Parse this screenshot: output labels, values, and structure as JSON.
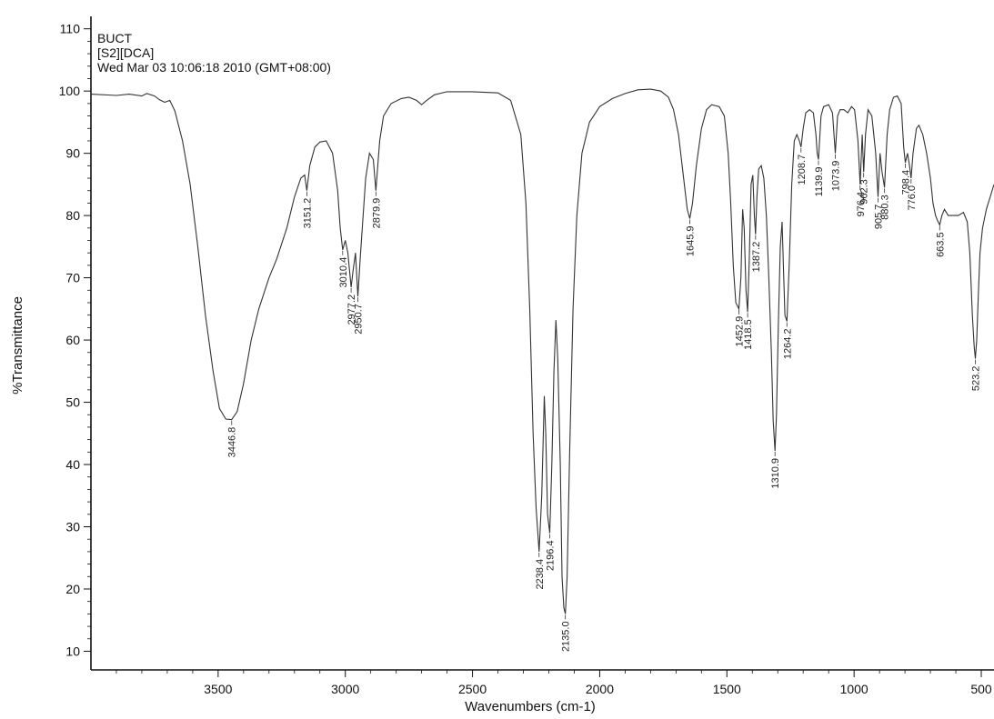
{
  "chart_data": {
    "type": "line",
    "header_lines": [
      "BUCT",
      "[S2][DCA]",
      "Wed Mar 03 10:06:18 2010 (GMT+08:00)"
    ],
    "xlabel": "Wavenumbers (cm-1)",
    "ylabel": "%Transmittance",
    "xlim": [
      4000,
      450
    ],
    "ylim": [
      7,
      112
    ],
    "x_reversed": true,
    "xticks": [
      3500,
      3000,
      2500,
      2000,
      1500,
      1000,
      500
    ],
    "yticks": [
      10,
      20,
      30,
      40,
      50,
      60,
      70,
      80,
      90,
      100,
      110
    ],
    "grid": false,
    "series": [
      {
        "points": [
          [
            4000,
            99.5
          ],
          [
            3900,
            99.3
          ],
          [
            3850,
            99.5
          ],
          [
            3800,
            99.2
          ],
          [
            3780,
            99.6
          ],
          [
            3750,
            99.2
          ],
          [
            3730,
            98.6
          ],
          [
            3710,
            98.2
          ],
          [
            3690,
            98.5
          ],
          [
            3670,
            96.8
          ],
          [
            3640,
            92
          ],
          [
            3610,
            85
          ],
          [
            3580,
            75
          ],
          [
            3550,
            64
          ],
          [
            3520,
            55
          ],
          [
            3495,
            49
          ],
          [
            3470,
            47.3
          ],
          [
            3446.8,
            47.2
          ],
          [
            3425,
            48.5
          ],
          [
            3400,
            53
          ],
          [
            3370,
            60
          ],
          [
            3340,
            65
          ],
          [
            3300,
            70
          ],
          [
            3270,
            73
          ],
          [
            3230,
            78
          ],
          [
            3200,
            83
          ],
          [
            3175,
            86
          ],
          [
            3160,
            86.5
          ],
          [
            3151.2,
            84
          ],
          [
            3140,
            88
          ],
          [
            3120,
            91
          ],
          [
            3100,
            91.8
          ],
          [
            3075,
            92
          ],
          [
            3050,
            90
          ],
          [
            3030,
            84
          ],
          [
            3020,
            78
          ],
          [
            3010.4,
            74.5
          ],
          [
            3000,
            76
          ],
          [
            2990,
            74
          ],
          [
            2977.2,
            68.5
          ],
          [
            2970,
            71
          ],
          [
            2960,
            74
          ],
          [
            2950.7,
            67
          ],
          [
            2940,
            74
          ],
          [
            2920,
            86
          ],
          [
            2905,
            90
          ],
          [
            2890,
            89
          ],
          [
            2879.9,
            84
          ],
          [
            2865,
            92
          ],
          [
            2850,
            96
          ],
          [
            2820,
            98
          ],
          [
            2780,
            98.8
          ],
          [
            2750,
            99
          ],
          [
            2720,
            98.5
          ],
          [
            2700,
            97.8
          ],
          [
            2680,
            98.5
          ],
          [
            2650,
            99.4
          ],
          [
            2600,
            99.9
          ],
          [
            2500,
            99.9
          ],
          [
            2400,
            99.7
          ],
          [
            2350,
            98.5
          ],
          [
            2310,
            93
          ],
          [
            2290,
            82
          ],
          [
            2275,
            65
          ],
          [
            2262,
            45
          ],
          [
            2250,
            33
          ],
          [
            2238.4,
            26
          ],
          [
            2228,
            35
          ],
          [
            2218,
            51
          ],
          [
            2212,
            45
          ],
          [
            2205,
            32
          ],
          [
            2196.4,
            29
          ],
          [
            2188,
            40
          ],
          [
            2180,
            55
          ],
          [
            2172,
            63.2
          ],
          [
            2165,
            57
          ],
          [
            2155,
            40
          ],
          [
            2148,
            22
          ],
          [
            2141,
            17
          ],
          [
            2135,
            16
          ],
          [
            2128,
            22
          ],
          [
            2118,
            42
          ],
          [
            2105,
            65
          ],
          [
            2090,
            80
          ],
          [
            2070,
            90
          ],
          [
            2040,
            95
          ],
          [
            2000,
            97.5
          ],
          [
            1950,
            98.8
          ],
          [
            1900,
            99.6
          ],
          [
            1850,
            100.2
          ],
          [
            1800,
            100.3
          ],
          [
            1760,
            100
          ],
          [
            1730,
            99
          ],
          [
            1710,
            97
          ],
          [
            1690,
            93
          ],
          [
            1670,
            86
          ],
          [
            1656,
            81
          ],
          [
            1645.9,
            79.5
          ],
          [
            1635,
            82
          ],
          [
            1620,
            88
          ],
          [
            1600,
            94
          ],
          [
            1580,
            97
          ],
          [
            1560,
            97.8
          ],
          [
            1530,
            97.5
          ],
          [
            1510,
            96
          ],
          [
            1495,
            90
          ],
          [
            1485,
            82
          ],
          [
            1475,
            72
          ],
          [
            1465,
            66
          ],
          [
            1452.9,
            65
          ],
          [
            1445,
            70
          ],
          [
            1438,
            81
          ],
          [
            1432,
            78
          ],
          [
            1425,
            68
          ],
          [
            1418.5,
            64.5
          ],
          [
            1412,
            73
          ],
          [
            1405,
            85
          ],
          [
            1398,
            86.5
          ],
          [
            1392,
            80
          ],
          [
            1387.2,
            77
          ],
          [
            1382,
            83
          ],
          [
            1375,
            87.5
          ],
          [
            1365,
            88
          ],
          [
            1355,
            86
          ],
          [
            1345,
            80
          ],
          [
            1335,
            70
          ],
          [
            1325,
            58
          ],
          [
            1318,
            47
          ],
          [
            1310.9,
            42.2
          ],
          [
            1305,
            48
          ],
          [
            1298,
            62
          ],
          [
            1290,
            75
          ],
          [
            1283,
            79
          ],
          [
            1278,
            72
          ],
          [
            1272,
            64
          ],
          [
            1264.2,
            63
          ],
          [
            1255,
            72
          ],
          [
            1245,
            85
          ],
          [
            1235,
            92
          ],
          [
            1225,
            93
          ],
          [
            1215,
            92
          ],
          [
            1208.7,
            91
          ],
          [
            1200,
            94
          ],
          [
            1190,
            96.5
          ],
          [
            1175,
            97
          ],
          [
            1160,
            96.5
          ],
          [
            1150,
            93
          ],
          [
            1145,
            90
          ],
          [
            1139.9,
            89
          ],
          [
            1130,
            96
          ],
          [
            1120,
            97.5
          ],
          [
            1100,
            97.8
          ],
          [
            1085,
            96.5
          ],
          [
            1073.9,
            90
          ],
          [
            1065,
            96
          ],
          [
            1055,
            97
          ],
          [
            1040,
            97
          ],
          [
            1025,
            96.5
          ],
          [
            1010,
            97.5
          ],
          [
            998,
            97
          ],
          [
            985,
            92
          ],
          [
            976.4,
            85
          ],
          [
            968,
            93
          ],
          [
            962.3,
            87
          ],
          [
            955,
            93
          ],
          [
            945,
            97
          ],
          [
            930,
            96
          ],
          [
            915,
            90
          ],
          [
            905.7,
            83
          ],
          [
            898,
            90
          ],
          [
            890,
            87
          ],
          [
            880.3,
            84.5
          ],
          [
            870,
            93
          ],
          [
            860,
            97
          ],
          [
            845,
            99
          ],
          [
            830,
            99.2
          ],
          [
            815,
            98
          ],
          [
            805,
            91
          ],
          [
            798.4,
            88.5
          ],
          [
            790,
            90
          ],
          [
            782,
            88
          ],
          [
            776,
            86
          ],
          [
            768,
            90
          ],
          [
            755,
            94
          ],
          [
            745,
            94.5
          ],
          [
            730,
            93
          ],
          [
            715,
            90
          ],
          [
            700,
            86
          ],
          [
            690,
            82
          ],
          [
            680,
            80
          ],
          [
            670,
            79
          ],
          [
            663.5,
            78.5
          ],
          [
            655,
            80
          ],
          [
            645,
            81
          ],
          [
            630,
            80
          ],
          [
            610,
            80
          ],
          [
            590,
            80
          ],
          [
            570,
            80.5
          ],
          [
            555,
            79
          ],
          [
            545,
            74
          ],
          [
            535,
            64
          ],
          [
            528,
            59
          ],
          [
            523.2,
            57
          ],
          [
            518,
            60
          ],
          [
            512,
            67
          ],
          [
            505,
            74
          ],
          [
            495,
            78
          ],
          [
            480,
            81
          ],
          [
            465,
            83
          ],
          [
            450,
            85
          ]
        ]
      }
    ],
    "peak_labels": [
      {
        "text": "3446.8",
        "x": 3446.8,
        "y": 47.2
      },
      {
        "text": "3151.2",
        "x": 3151.2,
        "y": 84
      },
      {
        "text": "3010.4",
        "x": 3010.4,
        "y": 74.5
      },
      {
        "text": "2977.2",
        "x": 2977.2,
        "y": 68.5
      },
      {
        "text": "2950.7",
        "x": 2950.7,
        "y": 67
      },
      {
        "text": "2879.9",
        "x": 2879.9,
        "y": 84
      },
      {
        "text": "2238.4",
        "x": 2238.4,
        "y": 26
      },
      {
        "text": "2196.4",
        "x": 2196.4,
        "y": 29
      },
      {
        "text": "2135.0",
        "x": 2135,
        "y": 16
      },
      {
        "text": "1645.9",
        "x": 1645.9,
        "y": 79.5
      },
      {
        "text": "1452.9",
        "x": 1452.9,
        "y": 65
      },
      {
        "text": "1418.5",
        "x": 1418.5,
        "y": 64.5
      },
      {
        "text": "1387.2",
        "x": 1387.2,
        "y": 77
      },
      {
        "text": "1310.9",
        "x": 1310.9,
        "y": 42.2
      },
      {
        "text": "1264.2",
        "x": 1264.2,
        "y": 63
      },
      {
        "text": "1208.7",
        "x": 1208.7,
        "y": 91
      },
      {
        "text": "1139.9",
        "x": 1139.9,
        "y": 89
      },
      {
        "text": "1073.9",
        "x": 1073.9,
        "y": 90
      },
      {
        "text": "976.4",
        "x": 976.4,
        "y": 85
      },
      {
        "text": "962.3",
        "x": 962.3,
        "y": 87
      },
      {
        "text": "905.7",
        "x": 905.7,
        "y": 83
      },
      {
        "text": "880.3",
        "x": 880.3,
        "y": 84.5
      },
      {
        "text": "798.4",
        "x": 798.4,
        "y": 88.5
      },
      {
        "text": "776.0",
        "x": 776,
        "y": 86
      },
      {
        "text": "663.5",
        "x": 663.5,
        "y": 78.5
      },
      {
        "text": "523.2",
        "x": 523.2,
        "y": 57
      }
    ],
    "line_color": "#333333",
    "axis_color": "#111111"
  }
}
